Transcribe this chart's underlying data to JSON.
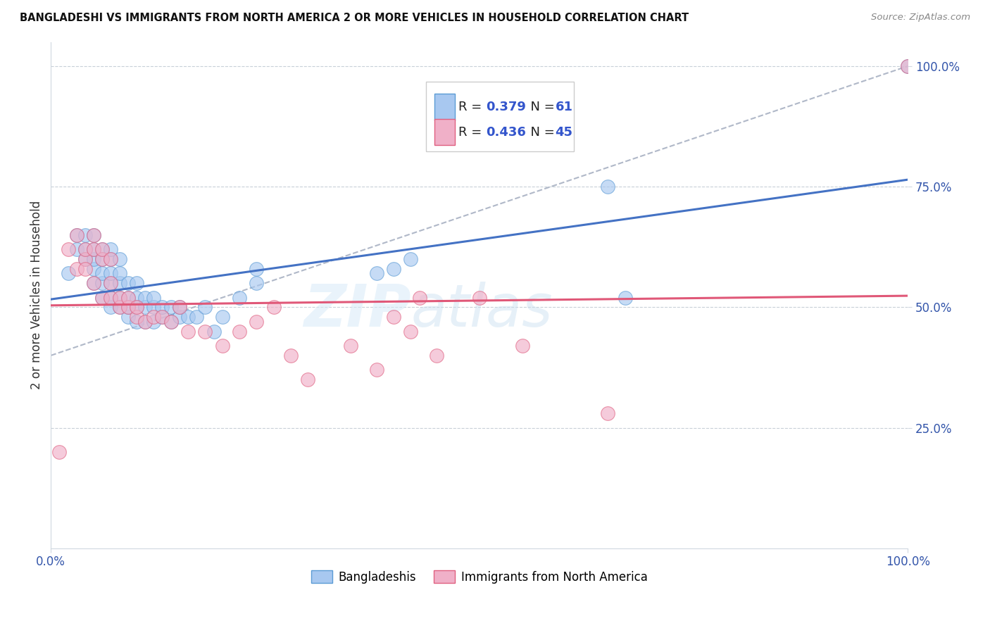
{
  "title": "BANGLADESHI VS IMMIGRANTS FROM NORTH AMERICA 2 OR MORE VEHICLES IN HOUSEHOLD CORRELATION CHART",
  "source": "Source: ZipAtlas.com",
  "ylabel": "2 or more Vehicles in Household",
  "color_blue": "#a8c8f0",
  "color_blue_edge": "#5b9bd5",
  "color_pink": "#f0b0c8",
  "color_pink_edge": "#e06080",
  "trend_blue": "#4472c4",
  "trend_pink": "#e05878",
  "trend_gray": "#b0b8c8",
  "blue_scatter_x": [
    0.02,
    0.03,
    0.03,
    0.04,
    0.04,
    0.04,
    0.05,
    0.05,
    0.05,
    0.05,
    0.05,
    0.06,
    0.06,
    0.06,
    0.06,
    0.06,
    0.07,
    0.07,
    0.07,
    0.07,
    0.07,
    0.07,
    0.08,
    0.08,
    0.08,
    0.08,
    0.08,
    0.09,
    0.09,
    0.09,
    0.09,
    0.1,
    0.1,
    0.1,
    0.1,
    0.11,
    0.11,
    0.11,
    0.12,
    0.12,
    0.12,
    0.13,
    0.13,
    0.14,
    0.14,
    0.15,
    0.15,
    0.16,
    0.17,
    0.18,
    0.19,
    0.2,
    0.22,
    0.24,
    0.24,
    0.38,
    0.4,
    0.42,
    0.65,
    0.67,
    1.0
  ],
  "blue_scatter_y": [
    0.57,
    0.62,
    0.65,
    0.6,
    0.62,
    0.65,
    0.55,
    0.58,
    0.6,
    0.62,
    0.65,
    0.52,
    0.55,
    0.57,
    0.6,
    0.62,
    0.5,
    0.52,
    0.55,
    0.57,
    0.6,
    0.62,
    0.5,
    0.52,
    0.55,
    0.57,
    0.6,
    0.48,
    0.5,
    0.52,
    0.55,
    0.47,
    0.5,
    0.52,
    0.55,
    0.47,
    0.5,
    0.52,
    0.47,
    0.5,
    0.52,
    0.48,
    0.5,
    0.47,
    0.5,
    0.48,
    0.5,
    0.48,
    0.48,
    0.5,
    0.45,
    0.48,
    0.52,
    0.55,
    0.58,
    0.57,
    0.58,
    0.6,
    0.75,
    0.52,
    1.0
  ],
  "pink_scatter_x": [
    0.01,
    0.02,
    0.03,
    0.03,
    0.04,
    0.04,
    0.04,
    0.05,
    0.05,
    0.05,
    0.06,
    0.06,
    0.06,
    0.07,
    0.07,
    0.07,
    0.08,
    0.08,
    0.09,
    0.09,
    0.1,
    0.1,
    0.11,
    0.12,
    0.13,
    0.14,
    0.15,
    0.16,
    0.18,
    0.2,
    0.22,
    0.24,
    0.26,
    0.28,
    0.3,
    0.35,
    0.38,
    0.4,
    0.42,
    0.43,
    0.45,
    0.5,
    0.55,
    0.65,
    1.0
  ],
  "pink_scatter_y": [
    0.2,
    0.62,
    0.58,
    0.65,
    0.6,
    0.62,
    0.58,
    0.62,
    0.65,
    0.55,
    0.6,
    0.62,
    0.52,
    0.6,
    0.52,
    0.55,
    0.5,
    0.52,
    0.5,
    0.52,
    0.48,
    0.5,
    0.47,
    0.48,
    0.48,
    0.47,
    0.5,
    0.45,
    0.45,
    0.42,
    0.45,
    0.47,
    0.5,
    0.4,
    0.35,
    0.42,
    0.37,
    0.48,
    0.45,
    0.52,
    0.4,
    0.52,
    0.42,
    0.28,
    1.0
  ],
  "legend_r1": "0.379",
  "legend_n1": "61",
  "legend_r2": "0.436",
  "legend_n2": "45",
  "xlim": [
    0.0,
    1.0
  ],
  "ylim": [
    0.0,
    1.05
  ],
  "yticks": [
    0.25,
    0.5,
    0.75,
    1.0
  ],
  "ytick_labels": [
    "25.0%",
    "50.0%",
    "75.0%",
    "100.0%"
  ]
}
